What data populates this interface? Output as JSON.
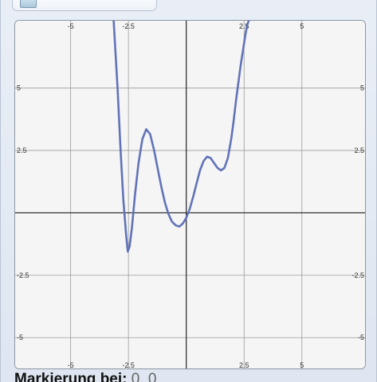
{
  "toolbar": {
    "icon": "graph-window-icon",
    "label": ""
  },
  "marker": {
    "label": "Markierung bei:",
    "value": "0, 0"
  },
  "colors": {
    "curve": "#6173b8",
    "grid": "#9a9a9a",
    "axis": "#222222",
    "plot_bg": "#f5f5f5"
  },
  "chart_data": {
    "type": "line",
    "title": "",
    "xlabel": "",
    "ylabel": "",
    "xlim": [
      -7.4,
      7.8
    ],
    "ylim": [
      -6.3,
      7.7
    ],
    "grid": true,
    "x_ticks": [
      {
        "value": -5,
        "label": "-5"
      },
      {
        "value": -2.5,
        "label": "-2.5"
      },
      {
        "value": 2.5,
        "label": "2.5"
      },
      {
        "value": 5,
        "label": "5"
      }
    ],
    "y_ticks": [
      {
        "value": 5,
        "label": "5"
      },
      {
        "value": 2.5,
        "label": "2.5"
      },
      {
        "value": -2.5,
        "label": "-2.5"
      },
      {
        "value": -5,
        "label": "-5"
      }
    ],
    "series": [
      {
        "x": [
          -3.14,
          -2.97,
          -2.84,
          -2.72,
          -2.6,
          -2.53,
          -2.45,
          -2.35,
          -2.22,
          -2.07,
          -1.9,
          -1.73,
          -1.56,
          -1.39,
          -1.23,
          -1.07,
          -0.92,
          -0.77,
          -0.62,
          -0.46,
          -0.3,
          -0.14,
          0.0,
          0.15,
          0.3,
          0.45,
          0.6,
          0.75,
          0.9,
          1.05,
          1.2,
          1.35,
          1.5,
          1.65,
          1.8,
          1.95,
          2.05,
          2.15,
          2.25,
          2.35,
          2.45,
          2.55,
          2.63,
          2.7
        ],
        "y": [
          7.7,
          5.0,
          2.5,
          0.5,
          -0.9,
          -1.55,
          -1.35,
          -0.6,
          0.7,
          1.95,
          2.95,
          3.35,
          3.15,
          2.5,
          1.75,
          1.0,
          0.4,
          -0.05,
          -0.35,
          -0.5,
          -0.55,
          -0.42,
          -0.2,
          0.15,
          0.65,
          1.2,
          1.72,
          2.08,
          2.25,
          2.2,
          2.0,
          1.8,
          1.7,
          1.8,
          2.2,
          3.0,
          3.7,
          4.5,
          5.2,
          5.9,
          6.5,
          7.1,
          7.5,
          7.7
        ]
      }
    ]
  }
}
